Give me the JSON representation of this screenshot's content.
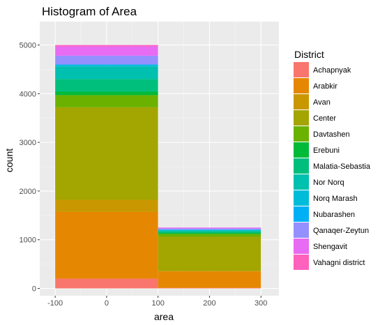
{
  "chart_data": {
    "type": "bar",
    "subtype": "stacked-histogram",
    "title": "Histogram of Area",
    "xlabel": "area",
    "ylabel": "count",
    "xlim": [
      -130,
      335
    ],
    "ylim": [
      -150,
      5480
    ],
    "x_ticks": [
      -100,
      0,
      100,
      200,
      300
    ],
    "x_tick_labels": [
      "-100",
      "0",
      "100",
      "200",
      "300"
    ],
    "y_ticks": [
      0,
      1000,
      2000,
      3000,
      4000,
      5000
    ],
    "y_tick_labels": [
      "0",
      "1000",
      "2000",
      "3000",
      "4000",
      "5000"
    ],
    "grid": true,
    "background": "#EBEBEB",
    "legend": {
      "title": "District",
      "position": "right"
    },
    "bins": [
      {
        "x_start": -100,
        "x_end": 100
      },
      {
        "x_start": 100,
        "x_end": 300
      }
    ],
    "series": [
      {
        "name": "Achapnyak",
        "color": "#F8766D",
        "values": [
          200,
          10
        ]
      },
      {
        "name": "Arabkir",
        "color": "#E58700",
        "values": [
          1370,
          340
        ]
      },
      {
        "name": "Avan",
        "color": "#C99800",
        "values": [
          250,
          10
        ]
      },
      {
        "name": "Center",
        "color": "#A3A500",
        "values": [
          1900,
          700
        ]
      },
      {
        "name": "Davtashen",
        "color": "#6BB100",
        "values": [
          250,
          60
        ]
      },
      {
        "name": "Erebuni",
        "color": "#00BA38",
        "values": [
          70,
          20
        ]
      },
      {
        "name": "Malatia-Sebastia",
        "color": "#00BF7D",
        "values": [
          260,
          30
        ]
      },
      {
        "name": "Nor Norq",
        "color": "#00C0AF",
        "values": [
          260,
          20
        ]
      },
      {
        "name": "Norq Marash",
        "color": "#00BCD8",
        "values": [
          30,
          10
        ]
      },
      {
        "name": "Nubarashen",
        "color": "#00B0F6",
        "values": [
          10,
          10
        ]
      },
      {
        "name": "Qanaqer-Zeytun",
        "color": "#9590FF",
        "values": [
          180,
          20
        ]
      },
      {
        "name": "Shengavit",
        "color": "#E76BF3",
        "values": [
          190,
          20
        ]
      },
      {
        "name": "Vahagni district",
        "color": "#FF62BC",
        "values": [
          30,
          0
        ]
      }
    ]
  }
}
